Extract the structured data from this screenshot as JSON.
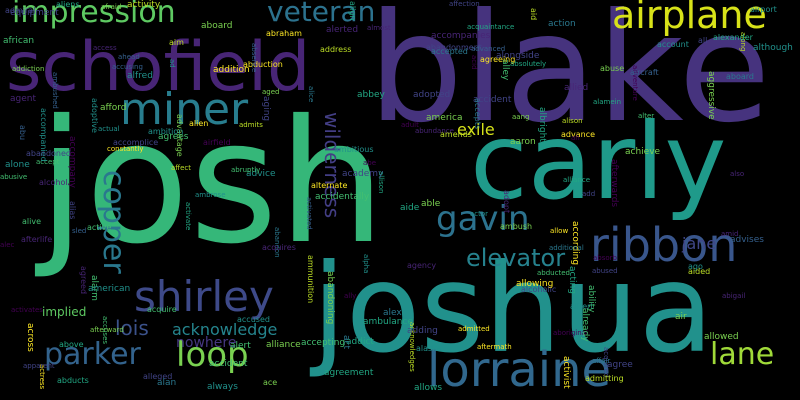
{
  "wordcloud": {
    "background": "#000000",
    "words": [
      {
        "text": "josh",
        "color": "#35b779"
      },
      {
        "text": "blake",
        "color": "#46337e"
      },
      {
        "text": "joshua",
        "color": "#21918c"
      },
      {
        "text": "carly",
        "color": "#1f9a8a"
      },
      {
        "text": "schofield",
        "color": "#482576"
      },
      {
        "text": "lorraine",
        "color": "#31688e"
      },
      {
        "text": "airplane",
        "color": "#d8e219"
      },
      {
        "text": "impression",
        "color": "#5ec962"
      },
      {
        "text": "miner",
        "color": "#287d8e"
      },
      {
        "text": "shirley",
        "color": "#3e4a89"
      },
      {
        "text": "ribbon",
        "color": "#39568c"
      },
      {
        "text": "parker",
        "color": "#33638d"
      },
      {
        "text": "loop",
        "color": "#7ad151"
      },
      {
        "text": "veteran",
        "color": "#2c728e"
      },
      {
        "text": "copper",
        "color": "#2a788e"
      },
      {
        "text": "gavin",
        "color": "#2c728e"
      },
      {
        "text": "lane",
        "color": "#a0da39"
      },
      {
        "text": "elevator",
        "color": "#26828e"
      },
      {
        "text": "wilderness",
        "color": "#433e85"
      },
      {
        "text": "exile",
        "color": "#d5e21a"
      },
      {
        "text": "lois",
        "color": "#3b528b"
      },
      {
        "text": "acknowledge",
        "color": "#25858e"
      },
      {
        "text": "nowhere",
        "color": "#453781"
      },
      {
        "text": "implied",
        "color": "#5ec962"
      },
      {
        "text": "jane",
        "color": "#404688"
      }
    ],
    "small_words": [
      "abandonment",
      "above",
      "absorb",
      "absolutely",
      "actress",
      "aboard",
      "addition",
      "abundance",
      "abraham",
      "abbey",
      "alongside",
      "accept",
      "advice",
      "academy",
      "afford",
      "allowed",
      "abu",
      "alcoholic",
      "abandon",
      "addict",
      "acquired",
      "abducted",
      "adventure",
      "acknowledges",
      "accompanied",
      "advantage",
      "alec",
      "abe",
      "advance",
      "airfield",
      "ambushed",
      "ambitious",
      "address",
      "ago",
      "accidentally",
      "allows",
      "abducts",
      "albert",
      "action",
      "alley",
      "adult",
      "abandoned",
      "alison",
      "aircraft",
      "accompanies",
      "activated",
      "alliance",
      "alice",
      "aboriginal",
      "aged",
      "aftermath",
      "afterwards",
      "allow",
      "abduction",
      "albright",
      "advises",
      "accepted",
      "aide",
      "constantly",
      "act",
      "aging",
      "ace",
      "alcohol",
      "activate",
      "adopt",
      "align",
      "abruptly",
      "activity",
      "according",
      "acquaintance",
      "amid",
      "agent",
      "ambrose",
      "accompany",
      "absence",
      "accused",
      "aaron",
      "alamein",
      "account",
      "abused",
      "ally",
      "abusive",
      "allison",
      "abandoning",
      "agree",
      "aided",
      "abuse",
      "acquires",
      "alias",
      "accident",
      "additional",
      "afraid",
      "admiral",
      "equipment",
      "adoptive",
      "alive",
      "alert",
      "actual",
      "admitting",
      "aang",
      "alien",
      "admits",
      "agrees",
      "america",
      "acting",
      "although",
      "accomplice",
      "accusing",
      "agreed",
      "sled",
      "admitted",
      "agreeing",
      "almost",
      "acquire",
      "ambush",
      "accepting",
      "african",
      "aboard",
      "all",
      "afterward",
      "agency",
      "accuses",
      "advanced",
      "able",
      "access",
      "affection",
      "ammunition",
      "along",
      "active",
      "alfred",
      "already",
      "accident",
      "aggressive",
      "amends",
      "ahead",
      "ability",
      "alex",
      "alter",
      "affair",
      "accepts",
      "alternate",
      "across",
      "activates",
      "abigail",
      "actor",
      "add",
      "adopted",
      "acid",
      "also",
      "always",
      "alarm",
      "allowing",
      "aim",
      "ambition",
      "alone",
      "alpha",
      "alexander",
      "afterlife",
      "american",
      "alerted",
      "achieve",
      "affect",
      "ah",
      "ambulance",
      "air",
      "airport",
      "aliens",
      "alleged",
      "ad",
      "aid",
      "alan",
      "adding",
      "agreement",
      "apparent",
      "addiction",
      "alliance",
      "activist",
      "allied",
      "alaska"
    ]
  }
}
